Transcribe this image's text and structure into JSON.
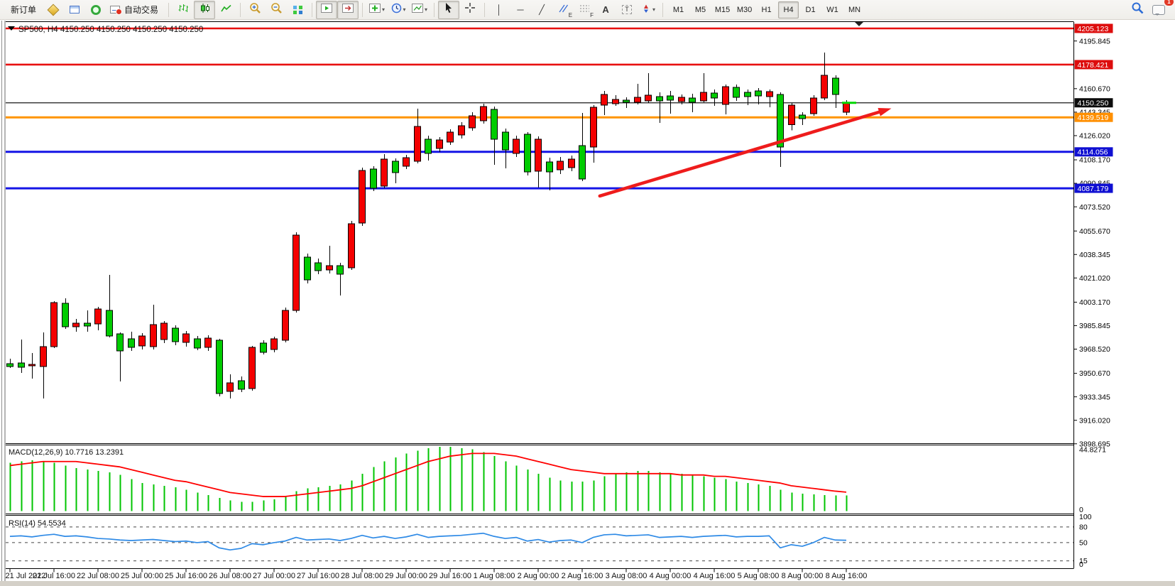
{
  "toolbar": {
    "new_order_label": "新订单",
    "auto_trade_label": "自动交易",
    "timeframes": [
      "M1",
      "M5",
      "M15",
      "M30",
      "H1",
      "H4",
      "D1",
      "W1",
      "MN"
    ],
    "active_timeframe": "H4",
    "notification_count": "1",
    "items": [
      {
        "name": "new-order-button",
        "kind": "text",
        "labelKey": "new_order_label"
      },
      {
        "name": "gold-diamond-icon",
        "kind": "icon",
        "icon": "gold-diamond"
      },
      {
        "name": "chart-window-icon",
        "kind": "icon",
        "icon": "blue-window"
      },
      {
        "name": "signals-icon",
        "kind": "icon",
        "icon": "green-ring"
      },
      {
        "name": "auto-trading-button",
        "kind": "icontext",
        "icon": "autotrade",
        "labelKey": "auto_trade_label"
      },
      {
        "kind": "sep"
      },
      {
        "name": "bar-chart-button",
        "kind": "svg",
        "icon": "ohlc-bars"
      },
      {
        "name": "candlestick-button",
        "kind": "svg",
        "icon": "candlestick",
        "pressed": true
      },
      {
        "name": "line-chart-button",
        "kind": "svg",
        "icon": "line-chart"
      },
      {
        "kind": "sep"
      },
      {
        "name": "zoom-in-button",
        "kind": "svg",
        "icon": "zoom-in"
      },
      {
        "name": "zoom-out-button",
        "kind": "svg",
        "icon": "zoom-out"
      },
      {
        "name": "tile-windows-button",
        "kind": "icon",
        "icon": "tile"
      },
      {
        "kind": "sep"
      },
      {
        "name": "auto-scroll-button",
        "kind": "svg",
        "icon": "auto-scroll",
        "pressed": true
      },
      {
        "name": "chart-shift-button",
        "kind": "svg",
        "icon": "chart-shift",
        "pressed": true
      },
      {
        "kind": "sep"
      },
      {
        "name": "indicators-button",
        "kind": "svg",
        "icon": "indicator-plus",
        "dropdown": true
      },
      {
        "name": "periods-button",
        "kind": "svg",
        "icon": "clock",
        "dropdown": true
      },
      {
        "name": "templates-button",
        "kind": "svg",
        "icon": "template",
        "dropdown": true
      },
      {
        "kind": "sep"
      },
      {
        "name": "cursor-button",
        "kind": "svg",
        "icon": "cursor-arrow",
        "pressed": true
      },
      {
        "name": "crosshair-button",
        "kind": "svg",
        "icon": "crosshair"
      },
      {
        "kind": "sep"
      },
      {
        "name": "vertical-line-button",
        "kind": "glyph",
        "glyph": "│"
      },
      {
        "name": "horizontal-line-button",
        "kind": "glyph",
        "glyph": "─"
      },
      {
        "name": "trendline-button",
        "kind": "glyph",
        "glyph": "╱"
      },
      {
        "name": "equidistant-channel-button",
        "kind": "svg",
        "icon": "channel",
        "sub": "E"
      },
      {
        "name": "fibonacci-button",
        "kind": "svg",
        "icon": "fibo",
        "sub": "F"
      },
      {
        "name": "text-button",
        "kind": "glyph",
        "glyph": "A"
      },
      {
        "name": "text-label-button",
        "kind": "labelbox",
        "glyph": "T"
      },
      {
        "name": "arrows-button",
        "kind": "svg",
        "icon": "arrows",
        "dropdown": true
      },
      {
        "kind": "sep"
      },
      {
        "kind": "tf-group"
      },
      {
        "kind": "spacer"
      },
      {
        "name": "search-button",
        "kind": "svg",
        "icon": "search"
      },
      {
        "name": "notifications-button",
        "kind": "icon",
        "icon": "chat",
        "badge": true
      }
    ]
  },
  "chart_data": {
    "type": "candlestick",
    "symbol": "SP500",
    "timeframe": "H4",
    "title": "SP500, H4  4150.250 4150.250 4150.250 4150.250",
    "last_price": 4150.25,
    "last_price_color": "#00d600",
    "up_color": "#f40000",
    "down_color": "#00cc00",
    "wick_color": "#000000",
    "price_axis_ticks": [
      "4195.845",
      "4160.670",
      "4143.345",
      "4126.020",
      "4108.170",
      "4090.845",
      "4073.520",
      "4055.670",
      "4038.345",
      "4021.020",
      "4003.170",
      "3985.845",
      "3968.520",
      "3950.670",
      "3933.345",
      "3916.020",
      "3898.695"
    ],
    "hlines": [
      {
        "label": "4205.123",
        "value": 4205.123,
        "line": "#e81010",
        "badge": "#dd0d0d",
        "w": 2.6
      },
      {
        "label": "4178.421",
        "value": 4178.421,
        "line": "#e81010",
        "badge": "#dd0d0d",
        "w": 2.6
      },
      {
        "label": "4150.250",
        "value": 4150.25,
        "line": "#1a1a1a",
        "badge": "#0c0c0c",
        "w": 1.2
      },
      {
        "label": "4139.519",
        "value": 4139.519,
        "line": "#ff9400",
        "badge": "#ff8f00",
        "w": 3
      },
      {
        "label": "4114.056",
        "value": 4114.056,
        "line": "#1414e6",
        "badge": "#0f0fd2",
        "w": 3
      },
      {
        "label": "4087.179",
        "value": 4087.179,
        "line": "#1414e6",
        "badge": "#0f0fd2",
        "w": 3
      }
    ],
    "trend_arrow": {
      "from_bar": 53.6,
      "from_price": 4081.5,
      "to_bar": 79.6,
      "to_price": 4144.9,
      "color": "#ee1c1c"
    },
    "time_labels": [
      "21 Jul 2022",
      "21 Jul 16:00",
      "22 Jul 08:00",
      "25 Jul 00:00",
      "25 Jul 16:00",
      "26 Jul 08:00",
      "27 Jul 00:00",
      "27 Jul 16:00",
      "28 Jul 08:00",
      "29 Jul 00:00",
      "29 Jul 16:00",
      "1 Aug 08:00",
      "2 Aug 00:00",
      "2 Aug 16:00",
      "3 Aug 08:00",
      "4 Aug 00:00",
      "4 Aug 16:00",
      "5 Aug 08:00",
      "8 Aug 00:00",
      "8 Aug 16:00"
    ],
    "candles": [
      [
        3957.8,
        3961.5,
        3954.7,
        3955.7
      ],
      [
        3958.3,
        3975.6,
        3951.0,
        3955.2
      ],
      [
        3956.2,
        3965.7,
        3946.8,
        3957.3
      ],
      [
        3955.7,
        3980.9,
        3932.1,
        3970.4
      ],
      [
        3970.4,
        4003.9,
        3969.3,
        4002.9
      ],
      [
        4002.3,
        4006.0,
        3983.5,
        3985.0
      ],
      [
        3985.0,
        3990.8,
        3981.4,
        3987.7
      ],
      [
        3987.7,
        3997.1,
        3981.4,
        3985.6
      ],
      [
        3987.1,
        3999.7,
        3982.4,
        3998.1
      ],
      [
        3997.1,
        4023.3,
        3977.2,
        3978.2
      ],
      [
        3979.8,
        3980.9,
        3944.7,
        3967.2
      ],
      [
        3976.1,
        3981.4,
        3967.2,
        3969.8
      ],
      [
        3970.9,
        3980.3,
        3968.3,
        3978.2
      ],
      [
        3970.4,
        4001.3,
        3968.3,
        3986.6
      ],
      [
        3975.6,
        3989.2,
        3973.0,
        3987.7
      ],
      [
        3984.0,
        3986.1,
        3971.4,
        3974.0
      ],
      [
        3973.5,
        3981.9,
        3970.4,
        3979.8
      ],
      [
        3976.1,
        3978.2,
        3967.7,
        3969.3
      ],
      [
        3969.8,
        3978.7,
        3967.2,
        3976.6
      ],
      [
        3975.1,
        3976.1,
        3933.7,
        3935.8
      ],
      [
        3937.3,
        3949.9,
        3932.1,
        3943.6
      ],
      [
        3945.2,
        3948.4,
        3936.8,
        3938.9
      ],
      [
        3939.5,
        3970.9,
        3937.9,
        3969.8
      ],
      [
        3972.9,
        3975.1,
        3964.6,
        3966.2
      ],
      [
        3968.3,
        3977.7,
        3966.2,
        3976.1
      ],
      [
        3975.1,
        3999.2,
        3973.5,
        3997.1
      ],
      [
        3997.1,
        4054.7,
        3995.5,
        4052.6
      ],
      [
        4036.4,
        4039.0,
        4017.0,
        4019.6
      ],
      [
        4032.2,
        4035.3,
        4023.8,
        4026.4
      ],
      [
        4026.9,
        4044.8,
        4024.3,
        4030.1
      ],
      [
        4030.1,
        4032.2,
        4008.1,
        4023.8
      ],
      [
        4028.5,
        4063.1,
        4026.9,
        4061.0
      ],
      [
        4061.5,
        4102.4,
        4059.4,
        4100.3
      ],
      [
        4101.4,
        4103.5,
        4085.2,
        4087.2
      ],
      [
        4088.8,
        4112.4,
        4087.2,
        4108.7
      ],
      [
        4107.1,
        4109.2,
        4090.9,
        4098.8
      ],
      [
        4103.5,
        4111.9,
        4101.4,
        4109.8
      ],
      [
        4107.1,
        4145.9,
        4105.6,
        4132.8
      ],
      [
        4123.4,
        4126.0,
        4107.7,
        4112.9
      ],
      [
        4116.6,
        4125.0,
        4114.0,
        4122.9
      ],
      [
        4121.3,
        4130.7,
        4119.2,
        4128.6
      ],
      [
        4126.5,
        4135.9,
        4123.9,
        4133.3
      ],
      [
        4131.8,
        4143.3,
        4129.7,
        4140.7
      ],
      [
        4137.0,
        4149.6,
        4134.9,
        4147.5
      ],
      [
        4145.4,
        4147.5,
        4104.5,
        4123.4
      ],
      [
        4128.6,
        4131.2,
        4101.9,
        4115.5
      ],
      [
        4112.9,
        4126.0,
        4110.3,
        4123.4
      ],
      [
        4127.0,
        4128.6,
        4096.7,
        4099.3
      ],
      [
        4099.8,
        4125.5,
        4087.7,
        4123.4
      ],
      [
        4106.6,
        4109.8,
        4085.7,
        4099.3
      ],
      [
        4100.9,
        4110.3,
        4097.7,
        4107.1
      ],
      [
        4102.4,
        4111.3,
        4099.8,
        4108.7
      ],
      [
        4118.7,
        4142.8,
        4092.4,
        4094.0
      ],
      [
        4117.6,
        4148.5,
        4106.1,
        4147.0
      ],
      [
        4148.5,
        4159.0,
        4141.2,
        4156.4
      ],
      [
        4149.6,
        4155.9,
        4148.0,
        4152.7
      ],
      [
        4152.2,
        4154.3,
        4146.4,
        4150.6
      ],
      [
        4150.6,
        4164.3,
        4149.1,
        4154.3
      ],
      [
        4151.7,
        4172.1,
        4150.1,
        4155.9
      ],
      [
        4154.8,
        4158.0,
        4135.4,
        4151.7
      ],
      [
        4155.4,
        4159.0,
        4142.3,
        4152.2
      ],
      [
        4151.2,
        4156.4,
        4149.1,
        4154.3
      ],
      [
        4153.8,
        4156.9,
        4143.3,
        4150.6
      ],
      [
        4151.7,
        4172.1,
        4150.6,
        4158.0
      ],
      [
        4157.4,
        4160.1,
        4148.0,
        4153.8
      ],
      [
        4149.1,
        4163.7,
        4141.7,
        4162.2
      ],
      [
        4161.6,
        4163.7,
        4151.7,
        4154.3
      ],
      [
        4158.0,
        4160.1,
        4148.5,
        4154.8
      ],
      [
        4159.0,
        4161.1,
        4149.1,
        4155.4
      ],
      [
        4154.8,
        4160.0,
        4147.0,
        4158.5
      ],
      [
        4156.4,
        4158.0,
        4103.0,
        4117.6
      ],
      [
        4134.0,
        4150.1,
        4130.0,
        4148.5
      ],
      [
        4141.2,
        4143.3,
        4133.9,
        4138.6
      ],
      [
        4142.2,
        4155.9,
        4140.7,
        4153.8
      ],
      [
        4153.8,
        4187.3,
        4152.2,
        4170.5
      ],
      [
        4168.5,
        4170.5,
        4146.4,
        4156.4
      ],
      [
        4143.3,
        4152.2,
        4141.2,
        4150.25
      ]
    ],
    "macd": {
      "label": "MACD(12,26,9)",
      "main_value": "10.7716",
      "signal_value": "13.2391",
      "axis_labels": [
        {
          "label": "44.8271",
          "v": 44.8271
        },
        {
          "label": "0",
          "v": 0
        }
      ],
      "hist_color": "#00c400",
      "signal_color": "#ff0000",
      "hist": [
        35,
        36,
        37,
        36,
        35,
        33,
        31,
        30,
        29,
        28,
        26,
        23,
        20,
        19,
        18,
        17,
        15,
        13,
        11,
        9,
        7,
        6,
        6,
        7,
        8,
        10,
        14,
        16,
        17,
        18,
        19,
        22,
        27,
        32,
        36,
        39,
        42,
        44,
        46,
        47,
        47,
        46,
        45,
        43,
        40,
        36,
        33,
        30,
        27,
        24,
        22,
        21,
        21,
        22,
        25,
        27,
        28,
        29,
        29,
        28,
        27,
        27,
        26,
        25,
        24,
        23,
        21,
        20,
        19,
        18,
        15,
        13,
        12,
        11.5,
        11,
        10.9,
        10.77
      ],
      "signal": [
        33,
        34,
        35,
        36,
        36,
        36,
        36,
        35,
        34,
        33,
        32,
        30,
        28,
        26,
        24,
        22,
        21,
        19,
        17,
        15,
        13,
        12,
        11,
        10,
        10,
        10,
        11,
        12,
        13,
        14,
        15,
        16,
        18,
        21,
        24,
        27,
        30,
        33,
        36,
        38,
        40,
        41,
        42,
        42,
        42,
        41,
        40,
        38,
        36,
        34,
        32,
        30,
        29,
        28,
        27,
        27,
        27,
        27,
        27,
        27,
        27,
        26,
        26,
        26,
        25,
        25,
        24,
        23,
        22,
        21,
        20,
        18,
        17,
        16,
        15,
        14,
        13.24
      ]
    },
    "rsi": {
      "label": "RSI(14)",
      "value": "54.5534",
      "line_color": "#2e8ae6",
      "axis_labels": [
        {
          "label": "100",
          "v": 100
        },
        {
          "label": "80",
          "v": 80,
          "dashed": true
        },
        {
          "label": "50",
          "v": 50,
          "dashed": true
        },
        {
          "label": "15",
          "v": 15,
          "dashed": true
        },
        {
          "label": "0",
          "v": 0
        }
      ],
      "values": [
        62,
        63,
        61,
        64,
        66,
        62,
        63,
        61,
        58,
        57,
        55,
        54,
        55,
        56,
        54,
        52,
        53,
        50,
        52,
        40,
        36,
        39,
        48,
        46,
        50,
        53,
        60,
        55,
        56,
        57,
        54,
        58,
        64,
        59,
        62,
        58,
        61,
        66,
        60,
        62,
        63,
        64,
        66,
        68,
        62,
        58,
        60,
        53,
        56,
        51,
        54,
        55,
        50,
        60,
        65,
        66,
        63,
        64,
        65,
        60,
        61,
        62,
        60,
        62,
        63,
        64,
        61,
        62,
        62,
        63,
        40,
        46,
        43,
        50,
        60,
        55,
        54.55
      ]
    }
  }
}
